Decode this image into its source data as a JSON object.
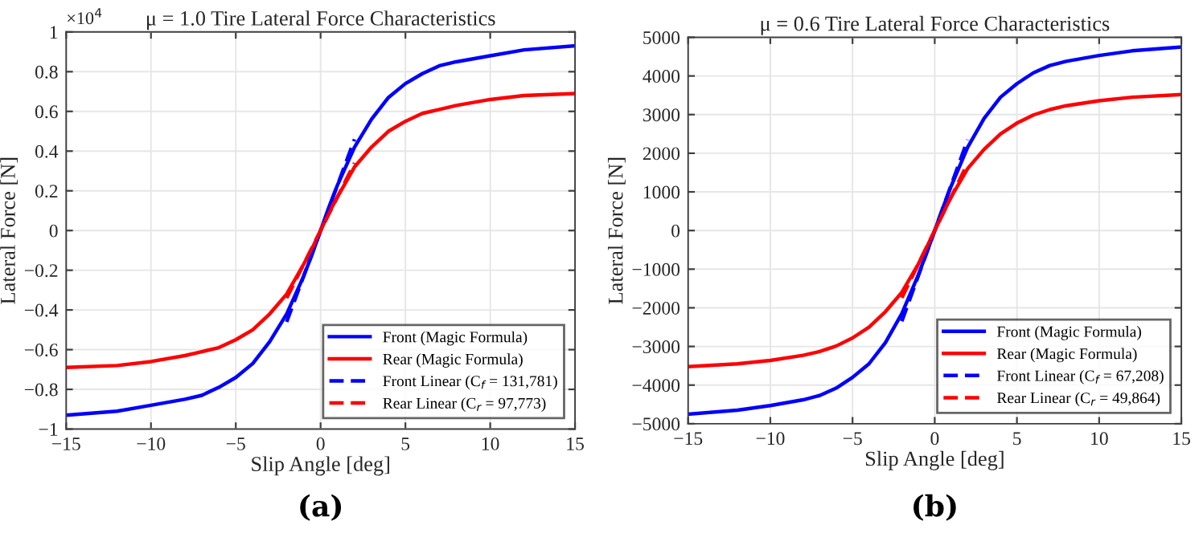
{
  "chart_data": [
    {
      "type": "line",
      "title": "μ = 1.0 Tire Lateral Force Characteristics",
      "xlabel": "Slip Angle [deg]",
      "ylabel": "Lateral Force [N]",
      "annotations": [
        "×10$^{4}$",
        "(a)"
      ],
      "xlim": [
        -15,
        15
      ],
      "xticks": [
        -15,
        -10,
        -5,
        0,
        5,
        10,
        15
      ],
      "ylim": [
        -1,
        1
      ],
      "yticks": [
        -1,
        -0.8,
        -0.6,
        -0.4,
        -0.2,
        0,
        0.2,
        0.4,
        0.6,
        0.8,
        1
      ],
      "grid": true,
      "legend": "bottom right",
      "series": [
        {
          "name": "Front (Magic Formula)",
          "color": "#0000ff",
          "line_style": "solid",
          "x": [
            -15,
            -12,
            -10,
            -8,
            -7,
            -6,
            -5,
            -4,
            -3,
            -2,
            -1,
            -0.5,
            0,
            0.5,
            1,
            2,
            3,
            4,
            5,
            6,
            7,
            8,
            10,
            12,
            15
          ],
          "values": [
            -0.93,
            -0.91,
            -0.88,
            -0.85,
            -0.83,
            -0.79,
            -0.74,
            -0.67,
            -0.56,
            -0.42,
            -0.23,
            -0.12,
            0,
            0.12,
            0.23,
            0.42,
            0.56,
            0.67,
            0.74,
            0.79,
            0.83,
            0.85,
            0.88,
            0.91,
            0.93
          ]
        },
        {
          "name": "Rear (Magic Formula)",
          "color": "#ff0000",
          "line_style": "solid",
          "x": [
            -15,
            -12,
            -10,
            -8,
            -7,
            -6,
            -5,
            -4,
            -3,
            -2,
            -1,
            -0.5,
            0,
            0.5,
            1,
            2,
            3,
            4,
            5,
            6,
            7,
            8,
            10,
            12,
            15
          ],
          "values": [
            -0.69,
            -0.68,
            -0.66,
            -0.63,
            -0.61,
            -0.59,
            -0.55,
            -0.5,
            -0.42,
            -0.32,
            -0.17,
            -0.09,
            0,
            0.09,
            0.17,
            0.32,
            0.42,
            0.5,
            0.55,
            0.59,
            0.61,
            0.63,
            0.66,
            0.68,
            0.69
          ]
        },
        {
          "name": "Front Linear (C$_{f}$ = 131,781)",
          "color": "#0000ff",
          "line_style": "dashed",
          "x": [
            -2,
            2
          ],
          "values": [
            -0.46,
            0.46
          ]
        },
        {
          "name": "Rear Linear (C$_{r}$ = 97,773)",
          "color": "#ff0000",
          "line_style": "dashed",
          "x": [
            -2,
            2
          ],
          "values": [
            -0.34,
            0.34
          ]
        }
      ]
    },
    {
      "type": "line",
      "title": "μ = 0.6 Tire Lateral Force Characteristics",
      "xlabel": "Slip Angle [deg]",
      "ylabel": "Lateral Force [N]",
      "annotations": [
        "(b)"
      ],
      "xlim": [
        -15,
        15
      ],
      "xticks": [
        -15,
        -10,
        -5,
        0,
        5,
        10,
        15
      ],
      "ylim": [
        -5000,
        5000
      ],
      "yticks": [
        -5000,
        -4000,
        -3000,
        -2000,
        -1000,
        0,
        1000,
        2000,
        3000,
        4000,
        5000
      ],
      "grid": true,
      "legend": "bottom right",
      "series": [
        {
          "name": "Front (Magic Formula)",
          "color": "#0000ff",
          "line_style": "solid",
          "x": [
            -15,
            -12,
            -10,
            -8,
            -7,
            -6,
            -5,
            -4,
            -3,
            -2,
            -1,
            -0.5,
            0,
            0.5,
            1,
            2,
            3,
            4,
            5,
            6,
            7,
            8,
            10,
            12,
            15
          ],
          "values": [
            -4750,
            -4650,
            -4530,
            -4380,
            -4270,
            -4080,
            -3800,
            -3450,
            -2900,
            -2150,
            -1150,
            -590,
            0,
            590,
            1150,
            2150,
            2900,
            3450,
            3800,
            4080,
            4270,
            4380,
            4530,
            4650,
            4750
          ]
        },
        {
          "name": "Rear (Magic Formula)",
          "color": "#ff0000",
          "line_style": "solid",
          "x": [
            -15,
            -12,
            -10,
            -8,
            -7,
            -6,
            -5,
            -4,
            -3,
            -2,
            -1,
            -0.5,
            0,
            0.5,
            1,
            2,
            3,
            4,
            5,
            6,
            7,
            8,
            10,
            12,
            15
          ],
          "values": [
            -3520,
            -3450,
            -3360,
            -3230,
            -3130,
            -2990,
            -2780,
            -2500,
            -2100,
            -1600,
            -870,
            -440,
            0,
            440,
            870,
            1600,
            2100,
            2500,
            2780,
            2990,
            3130,
            3230,
            3360,
            3450,
            3520
          ]
        },
        {
          "name": "Front Linear (C$_{f}$ = 67,208)",
          "color": "#0000ff",
          "line_style": "dashed",
          "x": [
            -2,
            2
          ],
          "values": [
            -2350,
            2350
          ]
        },
        {
          "name": "Rear Linear (C$_{r}$ = 49,864)",
          "color": "#ff0000",
          "line_style": "dashed",
          "x": [
            -2,
            2
          ],
          "values": [
            -1740,
            1740
          ]
        }
      ]
    }
  ]
}
